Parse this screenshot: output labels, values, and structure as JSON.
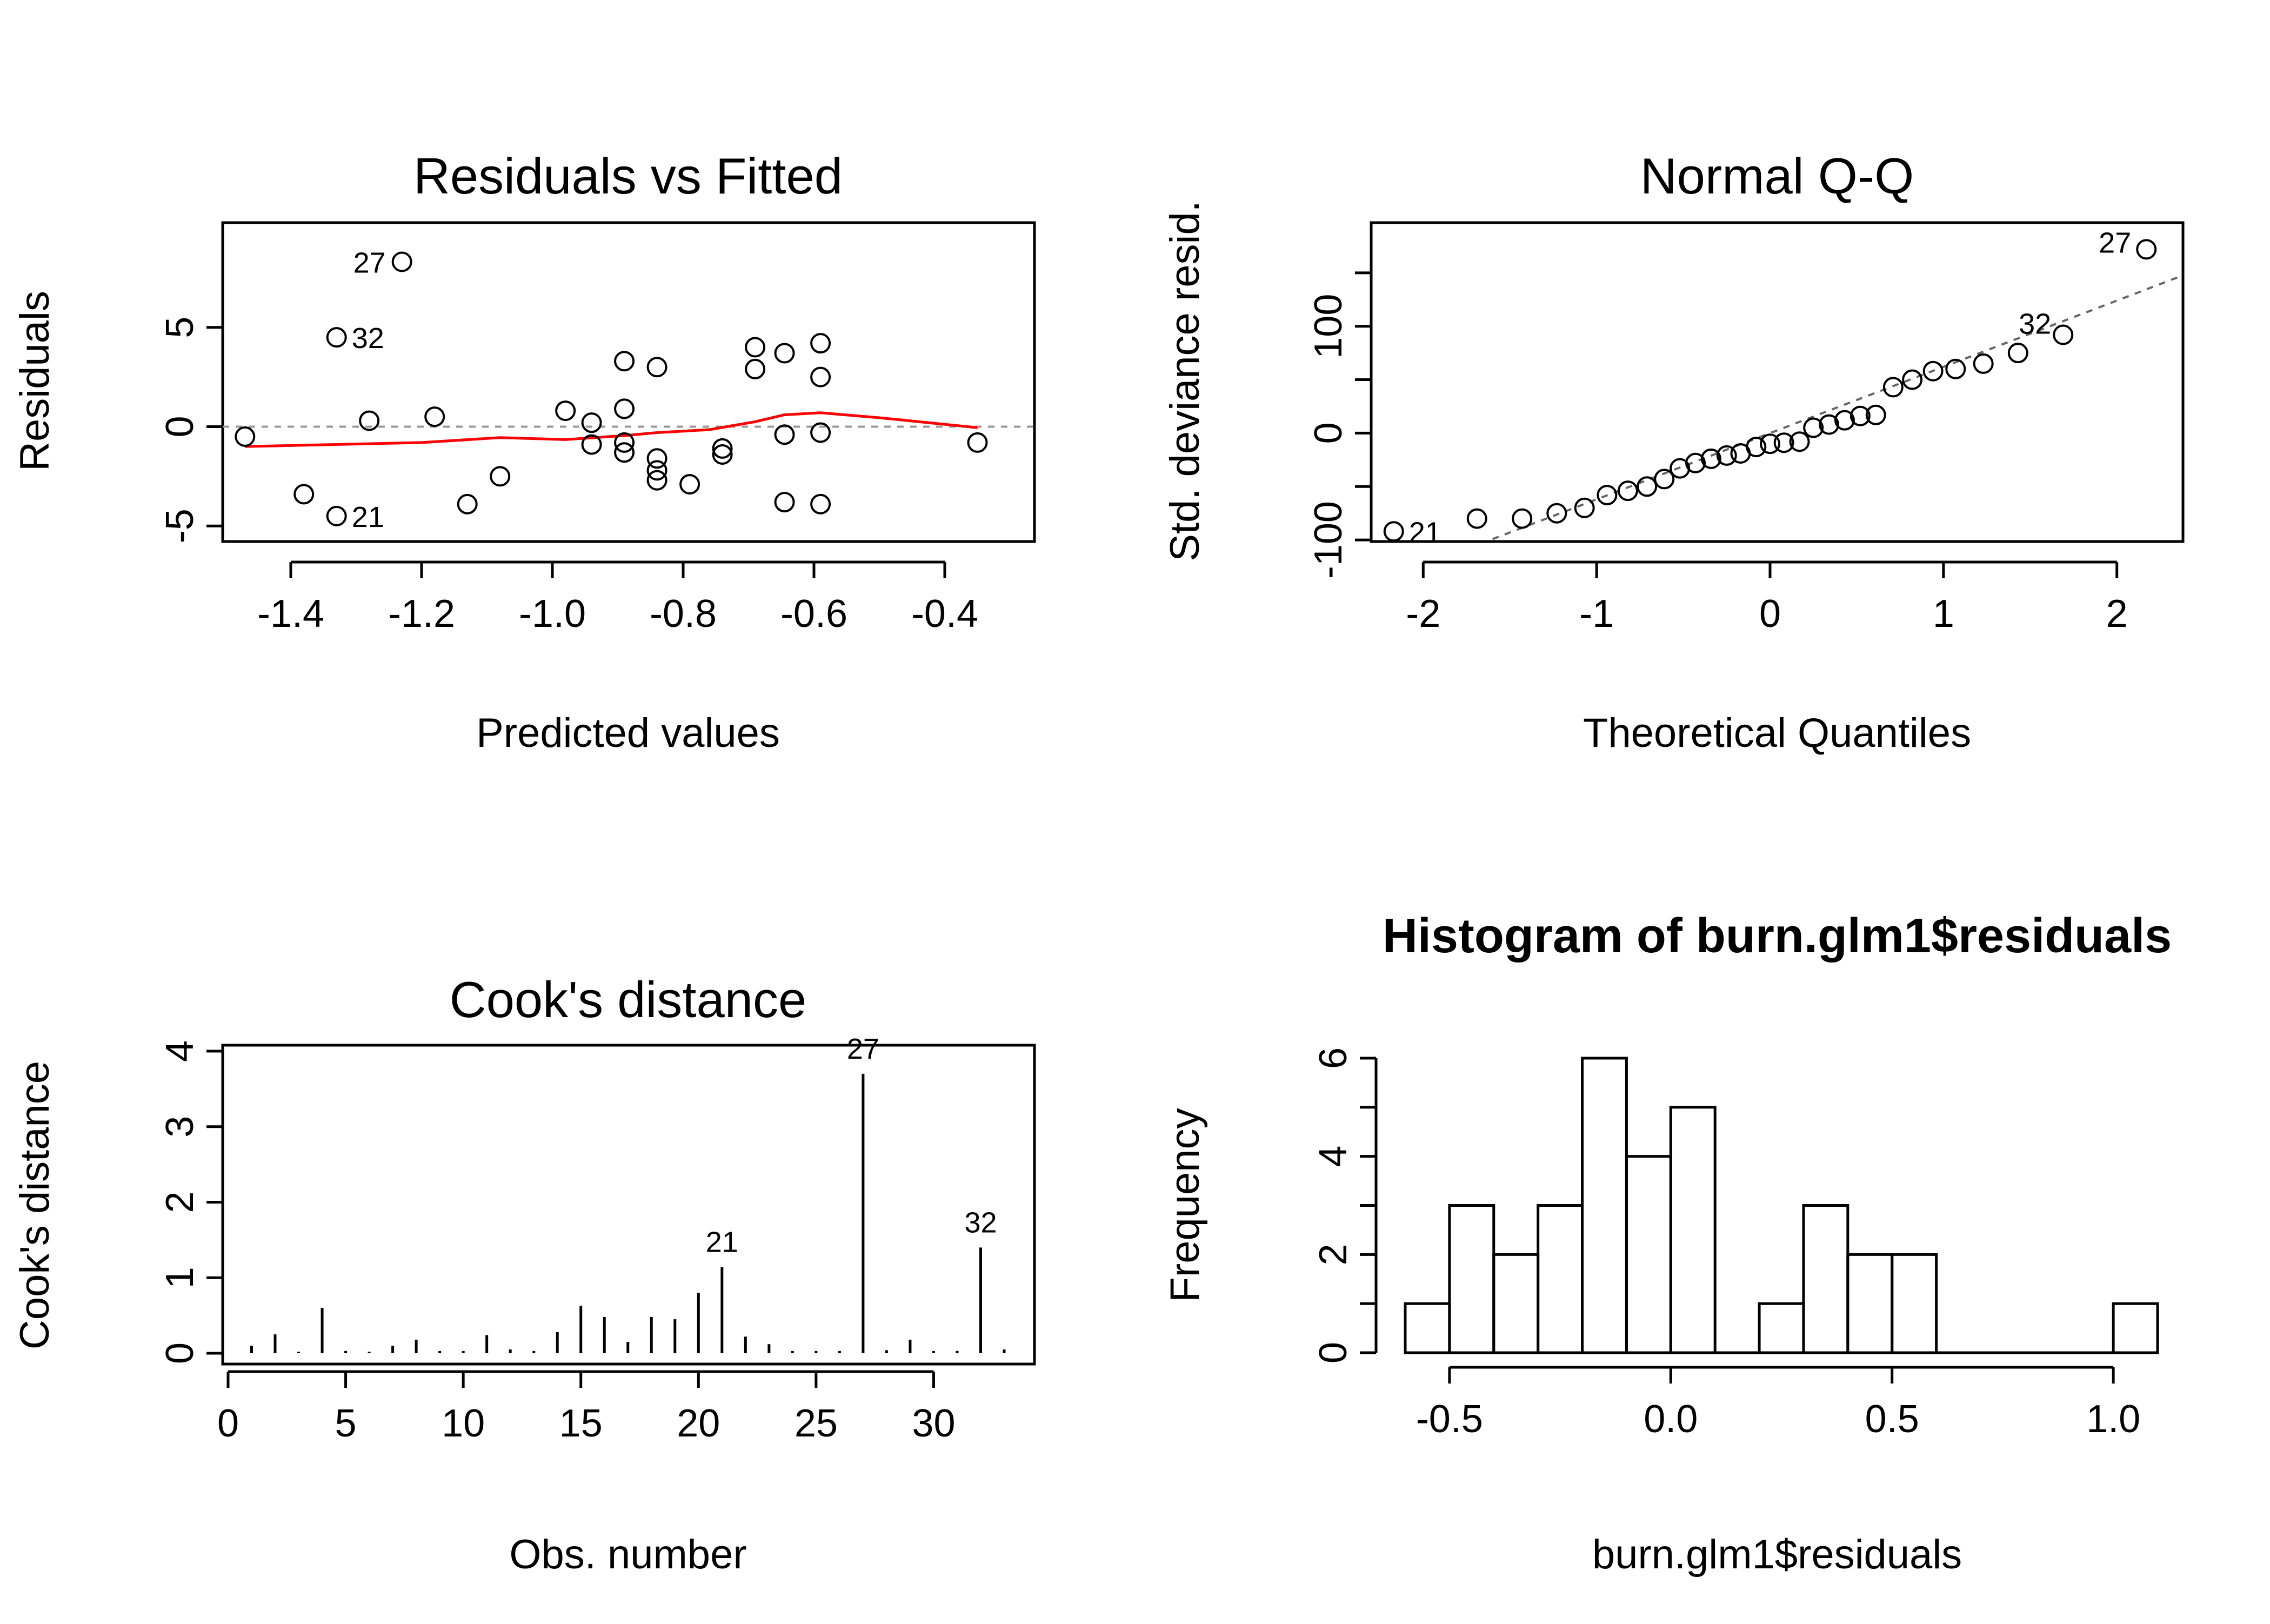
{
  "chart_data": [
    {
      "type": "scatter",
      "title": "Residuals vs Fitted",
      "xlabel": "Predicted values",
      "ylabel": "Residuals",
      "xlim": [
        -1.5,
        -0.3
      ],
      "ylim": [
        -6,
        10
      ],
      "x_ticks": [
        -1.4,
        -1.2,
        -1.0,
        -0.8,
        -0.6,
        -0.4
      ],
      "x_tick_labels": [
        "-1.4",
        "-1.2",
        "-1.0",
        "-0.8",
        "-0.6",
        "-0.4"
      ],
      "y_ticks": [
        -5,
        0,
        5
      ],
      "y_tick_labels": [
        "-5",
        "0",
        "5"
      ],
      "reference_line": 0,
      "points": [
        {
          "x": -1.47,
          "y": -0.5
        },
        {
          "x": -1.38,
          "y": -3.4
        },
        {
          "x": -1.33,
          "y": 4.5,
          "label": "32"
        },
        {
          "x": -1.33,
          "y": -4.5,
          "label": "21"
        },
        {
          "x": -1.28,
          "y": 0.3
        },
        {
          "x": -1.23,
          "y": 8.3,
          "label": "27"
        },
        {
          "x": -1.18,
          "y": 0.5
        },
        {
          "x": -1.13,
          "y": -3.9
        },
        {
          "x": -1.08,
          "y": -2.5
        },
        {
          "x": -0.98,
          "y": 0.8
        },
        {
          "x": -0.94,
          "y": -0.9
        },
        {
          "x": -0.94,
          "y": 0.2
        },
        {
          "x": -0.89,
          "y": 3.3
        },
        {
          "x": -0.89,
          "y": 0.9
        },
        {
          "x": -0.89,
          "y": -0.8
        },
        {
          "x": -0.89,
          "y": -1.3
        },
        {
          "x": -0.84,
          "y": 3.0
        },
        {
          "x": -0.84,
          "y": -1.6
        },
        {
          "x": -0.84,
          "y": -2.2
        },
        {
          "x": -0.84,
          "y": -2.7
        },
        {
          "x": -0.79,
          "y": -2.9
        },
        {
          "x": -0.74,
          "y": -1.1
        },
        {
          "x": -0.74,
          "y": -1.4
        },
        {
          "x": -0.69,
          "y": 4.0
        },
        {
          "x": -0.69,
          "y": 2.9
        },
        {
          "x": -0.645,
          "y": 3.7
        },
        {
          "x": -0.645,
          "y": -0.4
        },
        {
          "x": -0.645,
          "y": -3.8
        },
        {
          "x": -0.59,
          "y": 4.2
        },
        {
          "x": -0.59,
          "y": 2.5
        },
        {
          "x": -0.59,
          "y": -0.3
        },
        {
          "x": -0.59,
          "y": -3.9
        },
        {
          "x": -0.35,
          "y": -0.8
        }
      ],
      "smoother": {
        "name": "lowess",
        "color": "#ff0000",
        "points": [
          [
            -1.47,
            -1.0
          ],
          [
            -1.2,
            -0.8
          ],
          [
            -1.08,
            -0.55
          ],
          [
            -0.98,
            -0.65
          ],
          [
            -0.89,
            -0.45
          ],
          [
            -0.84,
            -0.3
          ],
          [
            -0.76,
            -0.15
          ],
          [
            -0.69,
            0.25
          ],
          [
            -0.645,
            0.6
          ],
          [
            -0.59,
            0.7
          ],
          [
            -0.5,
            0.45
          ],
          [
            -0.35,
            -0.05
          ]
        ]
      }
    },
    {
      "type": "scatter",
      "title": "Normal Q-Q",
      "xlabel": "Theoretical Quantiles",
      "ylabel": "Std. deviance resid.",
      "xlim": [
        -2.3,
        2.35
      ],
      "ylim": [
        -105,
        200
      ],
      "x_ticks": [
        -2,
        -1,
        0,
        1,
        2
      ],
      "x_tick_labels": [
        "-2",
        "-1",
        "0",
        "1",
        "2"
      ],
      "y_ticks": [
        -100,
        -50,
        0,
        50,
        100,
        150
      ],
      "y_tick_labels": [
        "-100",
        "",
        "0",
        "",
        "100",
        ""
      ],
      "reference_line": {
        "intercept": 0,
        "slope": 62
      },
      "points": [
        {
          "x": -2.17,
          "y": -92,
          "label": "21"
        },
        {
          "x": -1.69,
          "y": -80
        },
        {
          "x": -1.43,
          "y": -80
        },
        {
          "x": -1.23,
          "y": -75
        },
        {
          "x": -1.07,
          "y": -70
        },
        {
          "x": -0.94,
          "y": -58
        },
        {
          "x": -0.82,
          "y": -54
        },
        {
          "x": -0.71,
          "y": -50
        },
        {
          "x": -0.61,
          "y": -43
        },
        {
          "x": -0.52,
          "y": -33
        },
        {
          "x": -0.43,
          "y": -28
        },
        {
          "x": -0.34,
          "y": -24
        },
        {
          "x": -0.25,
          "y": -21
        },
        {
          "x": -0.17,
          "y": -19
        },
        {
          "x": -0.08,
          "y": -13
        },
        {
          "x": 0.0,
          "y": -10
        },
        {
          "x": 0.08,
          "y": -9
        },
        {
          "x": 0.17,
          "y": -8
        },
        {
          "x": 0.25,
          "y": 5
        },
        {
          "x": 0.34,
          "y": 8
        },
        {
          "x": 0.43,
          "y": 12
        },
        {
          "x": 0.52,
          "y": 16
        },
        {
          "x": 0.61,
          "y": 17
        },
        {
          "x": 0.71,
          "y": 43
        },
        {
          "x": 0.82,
          "y": 50
        },
        {
          "x": 0.94,
          "y": 58
        },
        {
          "x": 1.07,
          "y": 60
        },
        {
          "x": 1.23,
          "y": 65
        },
        {
          "x": 1.43,
          "y": 75
        },
        {
          "x": 1.69,
          "y": 92,
          "label": "32"
        },
        {
          "x": 2.17,
          "y": 172,
          "label": "27"
        }
      ]
    },
    {
      "type": "bar",
      "title": "Cook's distance",
      "xlabel": "Obs. number",
      "ylabel": "Cook's distance",
      "xlim": [
        -0.3,
        34
      ],
      "ylim": [
        0,
        4.15
      ],
      "x_ticks": [
        0,
        5,
        10,
        15,
        20,
        25,
        30
      ],
      "x_tick_labels": [
        "0",
        "5",
        "10",
        "15",
        "20",
        "25",
        "30"
      ],
      "y_ticks": [
        0,
        1,
        2,
        3,
        4
      ],
      "y_tick_labels": [
        "0",
        "1",
        "2",
        "3",
        "4"
      ],
      "x": [
        1,
        2,
        3,
        4,
        5,
        6,
        7,
        8,
        9,
        10,
        11,
        12,
        13,
        14,
        15,
        16,
        17,
        18,
        19,
        20,
        21,
        22,
        23,
        24,
        25,
        26,
        27,
        28,
        29,
        30,
        31,
        32,
        33
      ],
      "values": [
        0.1,
        0.25,
        0.02,
        0.6,
        0.03,
        0.02,
        0.1,
        0.18,
        0.03,
        0.03,
        0.24,
        0.05,
        0.03,
        0.28,
        0.63,
        0.48,
        0.15,
        0.48,
        0.45,
        0.8,
        1.14,
        0.22,
        0.12,
        0.03,
        0.03,
        0.03,
        3.7,
        0.04,
        0.18,
        0.03,
        0.03,
        1.4,
        0.05
      ],
      "labeled_points": [
        {
          "x": 21,
          "label": "21"
        },
        {
          "x": 27,
          "label": "27"
        },
        {
          "x": 32,
          "label": "32"
        }
      ]
    },
    {
      "type": "bar",
      "title": "Histogram of burn.glm1$residuals",
      "xlabel": "burn.glm1$residuals",
      "ylabel": "Frequency",
      "xlim": [
        -0.6,
        1.1
      ],
      "ylim": [
        0,
        6
      ],
      "x_ticks": [
        -0.5,
        0.0,
        0.5,
        1.0
      ],
      "x_tick_labels": [
        "-0.5",
        "0.0",
        "0.5",
        "1.0"
      ],
      "y_ticks": [
        0,
        1,
        2,
        3,
        4,
        5,
        6
      ],
      "y_tick_labels": [
        "0",
        "",
        "2",
        "",
        "4",
        "",
        "6"
      ],
      "bin_width": 0.1,
      "bin_edges": [
        -0.6,
        -0.5,
        -0.4,
        -0.3,
        -0.2,
        -0.1,
        0.0,
        0.1,
        0.2,
        0.3,
        0.4,
        0.5,
        0.6,
        0.7,
        0.8,
        0.9,
        1.0,
        1.1
      ],
      "values": [
        1,
        3,
        2,
        3,
        6,
        4,
        5,
        0,
        1,
        3,
        2,
        2,
        0,
        0,
        0,
        0,
        1
      ]
    }
  ]
}
